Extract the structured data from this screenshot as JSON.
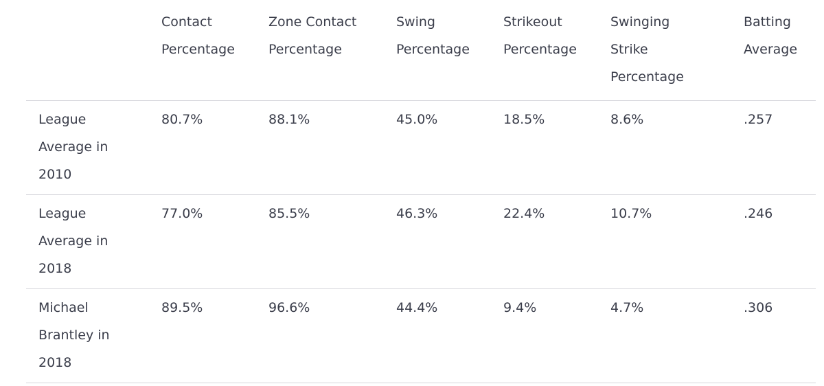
{
  "table": {
    "headers": [
      "",
      "Contact\nPercentage",
      "Zone Contact\nPercentage",
      "Swing\nPercentage",
      "Strikeout\nPercentage",
      "Swinging\nStrike\nPercentage",
      "Batting\nAverage"
    ],
    "rows": [
      {
        "label": "League\nAverage in\n2010",
        "values": [
          "80.7%",
          "88.1%",
          "45.0%",
          "18.5%",
          "8.6%",
          ".257"
        ]
      },
      {
        "label": "League\nAverage in\n2018",
        "values": [
          "77.0%",
          "85.5%",
          "46.3%",
          "22.4%",
          "10.7%",
          ".246"
        ]
      },
      {
        "label": "Michael\nBrantley in\n2018",
        "values": [
          "89.5%",
          "96.6%",
          "44.4%",
          "9.4%",
          "4.7%",
          ".306"
        ]
      }
    ]
  }
}
